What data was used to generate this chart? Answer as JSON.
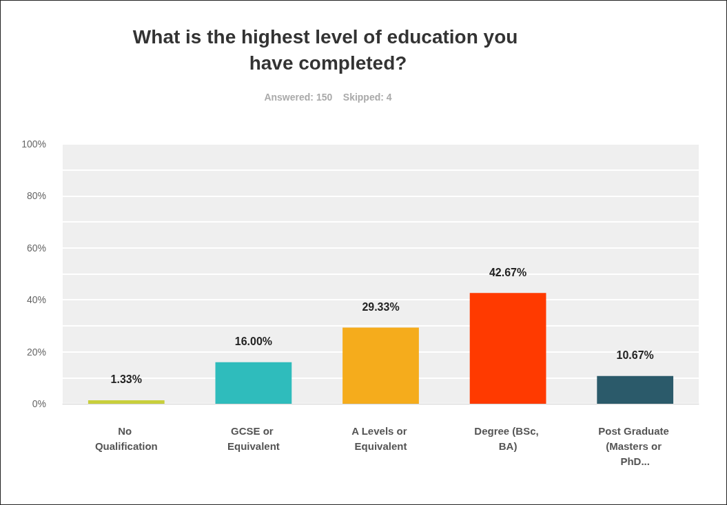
{
  "chart_data": {
    "type": "bar",
    "title": "What is the highest level of education you have completed?",
    "subtitle": "Answered: 150    Skipped: 4",
    "categories": [
      "No Qualification",
      "GCSE or Equivalent",
      "A Levels or Equivalent",
      "Degree (BSc, BA)",
      "Post Graduate (Masters or PhD..."
    ],
    "values": [
      1.33,
      16.0,
      29.33,
      42.67,
      10.67
    ],
    "colors": [
      "#c8cf3c",
      "#2fbcbc",
      "#f5ac1c",
      "#ff3a00",
      "#2b5a6a"
    ],
    "value_labels": [
      "1.33%",
      "16.00%",
      "29.33%",
      "42.67%",
      "10.67%"
    ],
    "ylim": [
      0,
      100
    ],
    "yticks": [
      {
        "value": 0,
        "label": "0%"
      },
      {
        "value": 10,
        "label": null
      },
      {
        "value": 20,
        "label": "20%"
      },
      {
        "value": 30,
        "label": null
      },
      {
        "value": 40,
        "label": "40%"
      },
      {
        "value": 50,
        "label": null
      },
      {
        "value": 60,
        "label": "60%"
      },
      {
        "value": 70,
        "label": null
      },
      {
        "value": 80,
        "label": "80%"
      },
      {
        "value": 90,
        "label": null
      },
      {
        "value": 100,
        "label": "100%"
      }
    ],
    "grid": "y"
  }
}
